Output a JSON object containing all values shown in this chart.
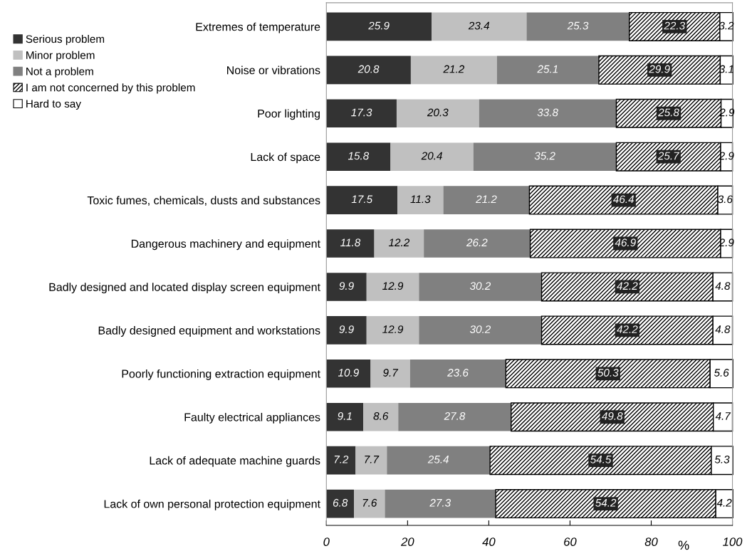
{
  "chart_data": {
    "type": "bar",
    "orientation": "horizontal",
    "stacked": true,
    "data_labels": true,
    "legend": "left",
    "grid": false,
    "xlabel": "%",
    "xlim": [
      0,
      100
    ],
    "xticks": [
      0,
      20,
      40,
      60,
      80,
      100
    ],
    "categories": [
      "Extremes of temperature",
      "Noise or vibrations",
      "Poor lighting",
      "Lack of space",
      "Toxic fumes, chemicals, dusts and substances",
      "Dangerous machinery and equipment",
      "Badly designed and located display screen equipment",
      "Badly designed equipment and workstations",
      "Poorly functioning extraction equipment",
      "Faulty electrical appliances",
      "Lack of adequate machine guards",
      "Lack of own personal protection equipment"
    ],
    "series": [
      {
        "name": "Serious problem",
        "color": "#333333",
        "values": [
          25.9,
          20.8,
          17.3,
          15.8,
          17.5,
          11.8,
          9.9,
          9.9,
          10.9,
          9.1,
          7.2,
          6.8
        ]
      },
      {
        "name": "Minor problem",
        "color": "#c0c0c0",
        "values": [
          23.4,
          21.2,
          20.3,
          20.4,
          11.3,
          12.2,
          12.9,
          12.9,
          9.7,
          8.6,
          7.7,
          7.6
        ]
      },
      {
        "name": "Not a problem",
        "color": "#808080",
        "values": [
          25.3,
          25.1,
          33.8,
          35.2,
          21.2,
          26.2,
          30.2,
          30.2,
          23.6,
          27.8,
          25.4,
          27.3
        ]
      },
      {
        "name": "I am not concerned by this problem",
        "color": "#000000",
        "values": [
          22.3,
          29.9,
          25.8,
          25.7,
          46.4,
          46.9,
          42.2,
          42.2,
          50.3,
          49.8,
          54.5,
          54.2
        ]
      },
      {
        "name": "Hard to say",
        "color": "#ffffff",
        "values": [
          3.2,
          3.1,
          2.9,
          2.9,
          3.6,
          2.9,
          4.8,
          4.8,
          5.6,
          4.7,
          5.3,
          4.2
        ]
      }
    ]
  }
}
